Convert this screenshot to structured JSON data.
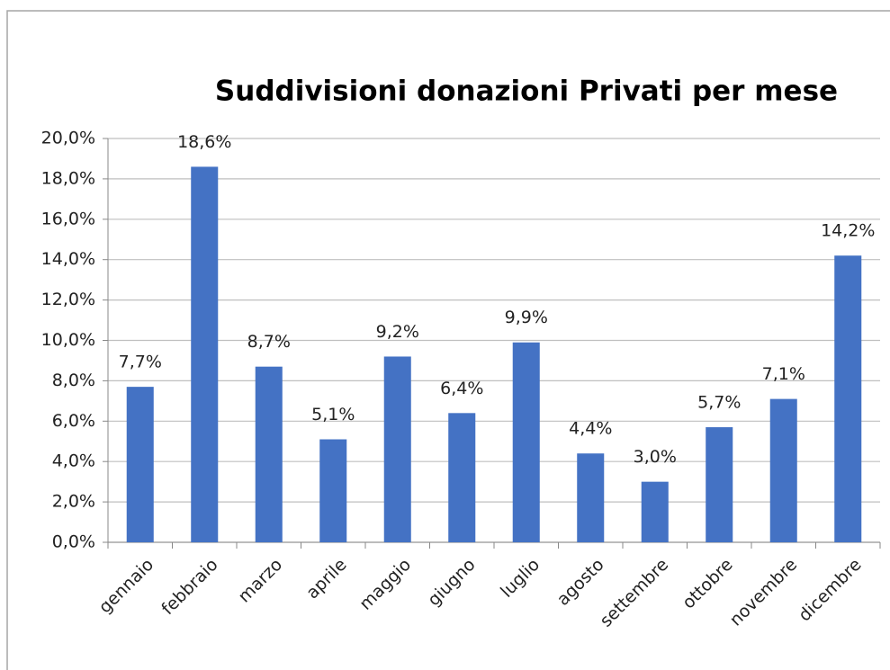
{
  "chart_data": {
    "type": "bar",
    "title": "Suddivisioni donazioni Privati per mese",
    "categories": [
      "gennaio",
      "febbraio",
      "marzo",
      "aprile",
      "maggio",
      "giugno",
      "luglio",
      "agosto",
      "settembre",
      "ottobre",
      "novembre",
      "dicembre"
    ],
    "values": [
      7.7,
      18.6,
      8.7,
      5.1,
      9.2,
      6.4,
      9.9,
      4.4,
      3.0,
      5.7,
      7.1,
      14.2
    ],
    "value_labels": [
      "7,7%",
      "18,6%",
      "8,7%",
      "5,1%",
      "9,2%",
      "6,4%",
      "9,9%",
      "4,4%",
      "3,0%",
      "5,7%",
      "7,1%",
      "14,2%"
    ],
    "color": "#4472c4",
    "ylim": [
      0,
      20
    ],
    "yticks": [
      {
        "value": 0,
        "label": "0,0%"
      },
      {
        "value": 2,
        "label": "2,0%"
      },
      {
        "value": 4,
        "label": "4,0%"
      },
      {
        "value": 6,
        "label": "6,0%"
      },
      {
        "value": 8,
        "label": "8,0%"
      },
      {
        "value": 10,
        "label": "10,0%"
      },
      {
        "value": 12,
        "label": "12,0%"
      },
      {
        "value": 14,
        "label": "14,0%"
      },
      {
        "value": 16,
        "label": "16,0%"
      },
      {
        "value": 18,
        "label": "18,0%"
      },
      {
        "value": 20,
        "label": "20,0%"
      }
    ],
    "grid": true
  }
}
